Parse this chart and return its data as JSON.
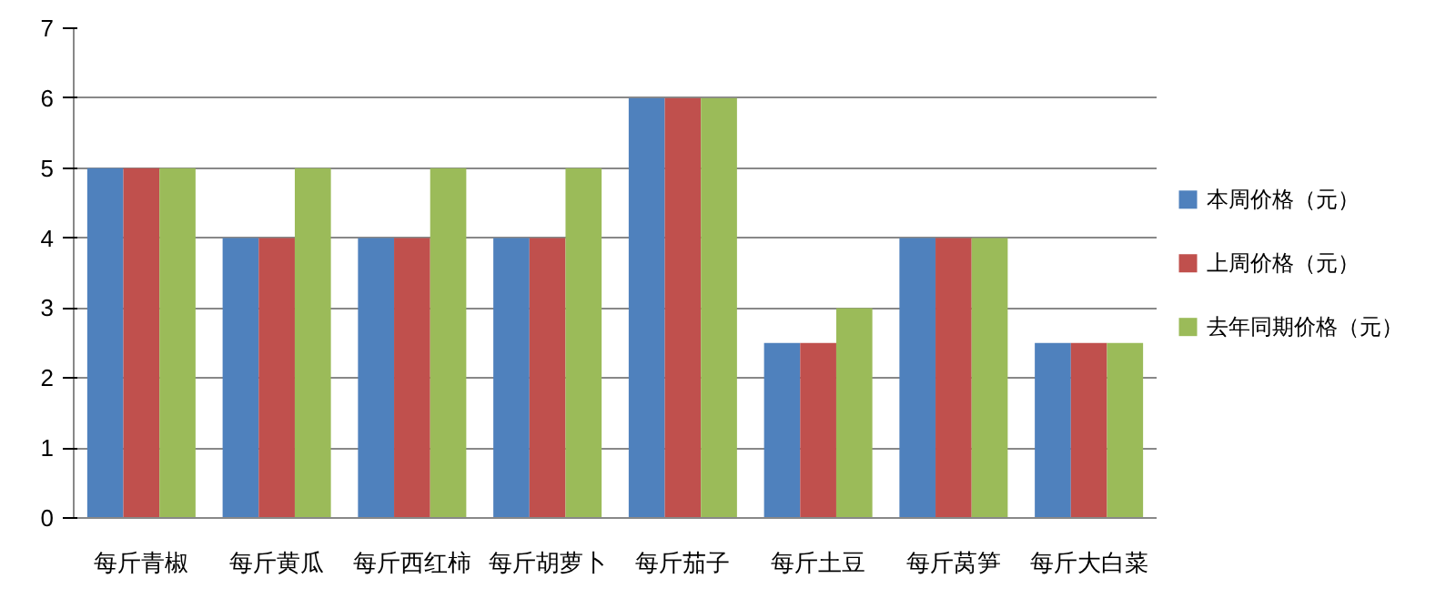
{
  "chart_data": {
    "type": "bar",
    "categories": [
      "每斤青椒",
      "每斤黄瓜",
      "每斤西红柿",
      "每斤胡萝卜",
      "每斤茄子",
      "每斤土豆",
      "每斤莴笋",
      "每斤大白菜"
    ],
    "series": [
      {
        "name": "本周价格（元）",
        "color": "#4f81bd",
        "values": [
          5,
          4,
          4,
          4,
          6,
          2.5,
          4,
          2.5
        ]
      },
      {
        "name": "上周价格（元）",
        "color": "#c0504d",
        "values": [
          5,
          4,
          4,
          4,
          6,
          2.5,
          4,
          2.5
        ]
      },
      {
        "name": "去年同期价格（元）",
        "color": "#9bbb59",
        "values": [
          5,
          5,
          5,
          5,
          6,
          3,
          4,
          2.5
        ]
      }
    ],
    "ylim": [
      0,
      7
    ],
    "yticks": [
      0,
      1,
      2,
      3,
      4,
      5,
      6,
      7
    ],
    "grid": "y",
    "legend": "right"
  }
}
